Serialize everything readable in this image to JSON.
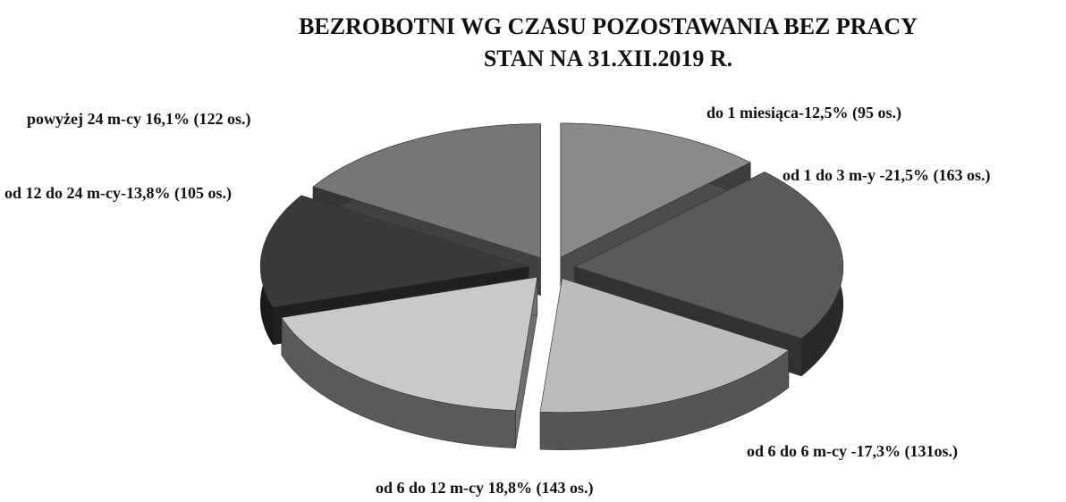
{
  "chart_data": {
    "type": "pie",
    "title": "BEZROBOTNI WG CZASU POZOSTAWANIA BEZ PRACY",
    "subtitle": "STAN NA 31.XII.2019 R.",
    "values": [
      12.5,
      21.5,
      17.3,
      18.8,
      13.8,
      16.1
    ],
    "value_labels": [
      "do 1 miesiąca-12,5% (95 os.)",
      "od 1 do 3 m-y -21,5% (163 os.)",
      "od 6 do 6 m-cy -17,3% (131os.)",
      "od 6 do 12 m-cy 18,8% (143 os.)",
      "od 12 do 24 m-cy-13,8% (105 os.)",
      "powyżej 24 m-cy 16,1% (122 os.)"
    ],
    "colors": [
      "#8a8a8a",
      "#5a5a5a",
      "#bcbcbc",
      "#c9c9c9",
      "#3a3a3a",
      "#767676"
    ]
  }
}
